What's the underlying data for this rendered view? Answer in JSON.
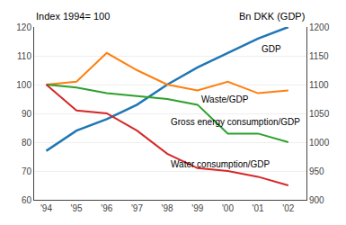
{
  "chart_data": {
    "type": "line",
    "ylabel": "Index 1994= 100",
    "y2label": "Bn DKK (GDP)",
    "x": [
      1994,
      1995,
      1996,
      1997,
      1998,
      1999,
      2000,
      2001,
      2002
    ],
    "series": [
      {
        "name": "GDP",
        "values": [
          77,
          84,
          88,
          93,
          100,
          106,
          111,
          116,
          120
        ]
      },
      {
        "name": "Waste/GDP",
        "values": [
          100,
          101,
          111,
          105,
          100,
          98,
          101,
          97,
          98
        ]
      },
      {
        "name": "Gross energy consumption/GDP",
        "values": [
          100,
          99,
          97,
          96,
          95,
          93,
          83,
          83,
          80
        ]
      },
      {
        "name": "Water consumption/GDP",
        "values": [
          100,
          91,
          90,
          84,
          76,
          71,
          70,
          68,
          65
        ]
      }
    ],
    "xlim": [
      1993.6,
      2002.6
    ],
    "xticks": [
      {
        "value": 1994,
        "label": "'94"
      },
      {
        "value": 1995,
        "label": "'95"
      },
      {
        "value": 1996,
        "label": "'96"
      },
      {
        "value": 1997,
        "label": "'97"
      },
      {
        "value": 1998,
        "label": "'98"
      },
      {
        "value": 1999,
        "label": "'99"
      },
      {
        "value": 2000,
        "label": "'00"
      },
      {
        "value": 2001,
        "label": "'01"
      },
      {
        "value": 2002,
        "label": "'02"
      }
    ],
    "ylim": [
      60,
      120
    ],
    "yticks": [
      60,
      70,
      80,
      90,
      100,
      110,
      120
    ],
    "y2lim": [
      900,
      1200
    ],
    "y2ticks": [
      900,
      950,
      1000,
      1050,
      1100,
      1150,
      1200
    ],
    "grid": true
  }
}
